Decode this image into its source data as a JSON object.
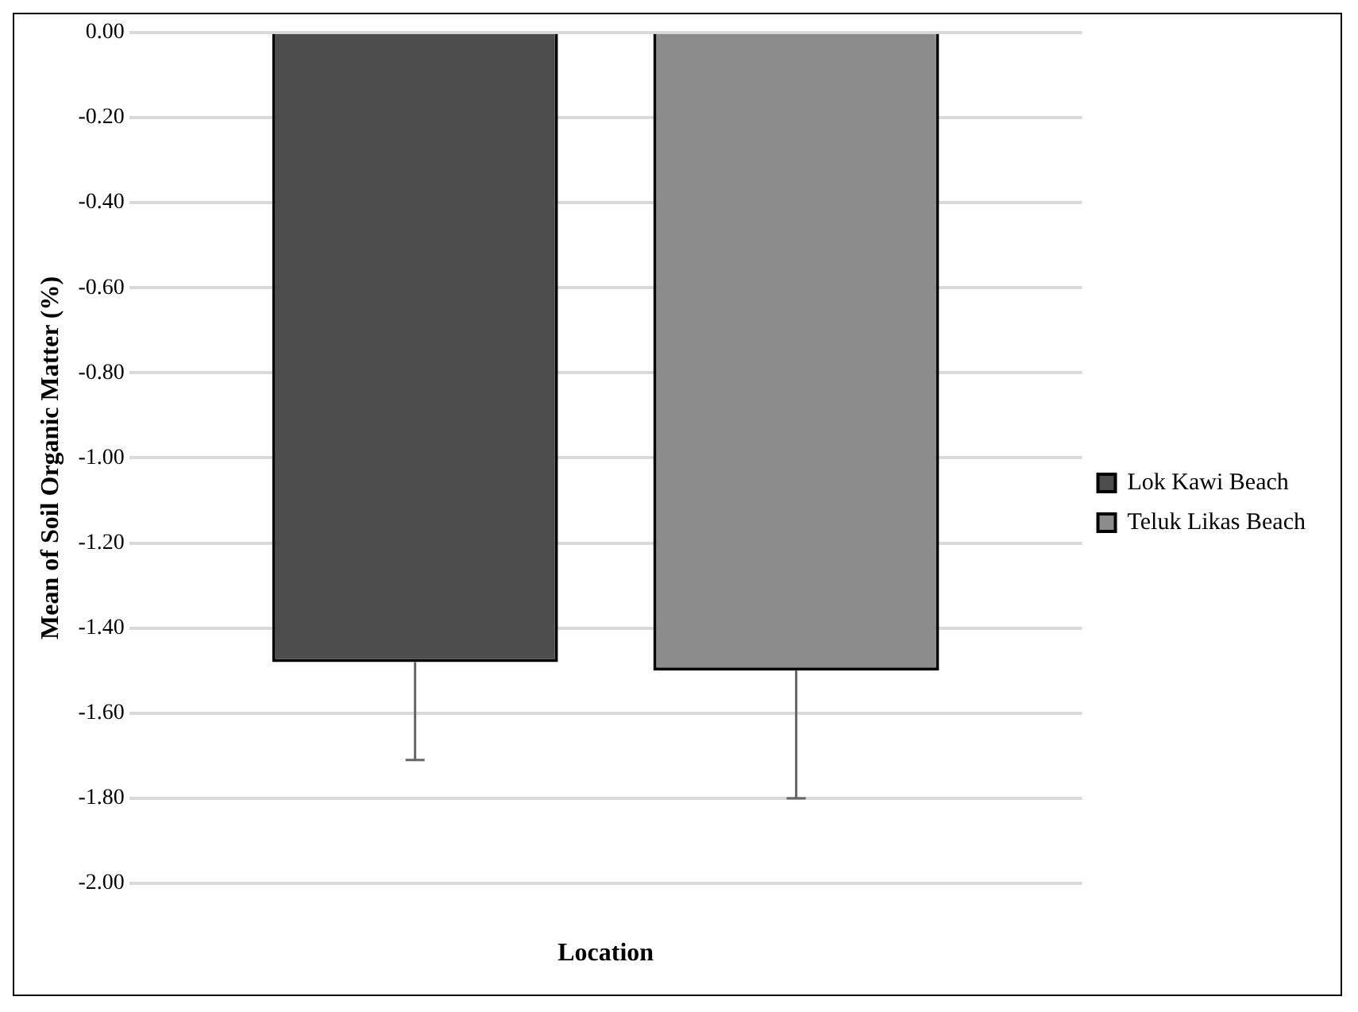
{
  "chart_data": {
    "type": "bar",
    "xlabel": "Location",
    "ylabel": "Mean of Soil Organic Matter (%)",
    "categories": [
      null
    ],
    "series": [
      {
        "name": "Lok Kawi Beach",
        "color": "#4d4d4d",
        "values": [
          -1.48
        ],
        "errors": [
          [
            -1.71,
            -1.48
          ]
        ]
      },
      {
        "name": "Teluk Likas Beach",
        "color": "#8c8c8c",
        "values": [
          -1.5
        ],
        "errors": [
          [
            -1.8,
            -1.5
          ]
        ]
      }
    ],
    "ylim": [
      -2,
      0
    ],
    "yticks": [
      {
        "value": 0,
        "label": "0.00"
      },
      {
        "value": -0.2,
        "label": "-0.20"
      },
      {
        "value": -0.4,
        "label": "-0.40"
      },
      {
        "value": -0.6,
        "label": "-0.60"
      },
      {
        "value": -0.8,
        "label": "-0.80"
      },
      {
        "value": -1,
        "label": "-1.00"
      },
      {
        "value": -1.2,
        "label": "-1.20"
      },
      {
        "value": -1.4,
        "label": "-1.40"
      },
      {
        "value": -1.6,
        "label": "-1.60"
      },
      {
        "value": -1.8,
        "label": "-1.80"
      },
      {
        "value": -2,
        "label": "-2.00"
      }
    ],
    "grid": "y",
    "legend": "right"
  }
}
